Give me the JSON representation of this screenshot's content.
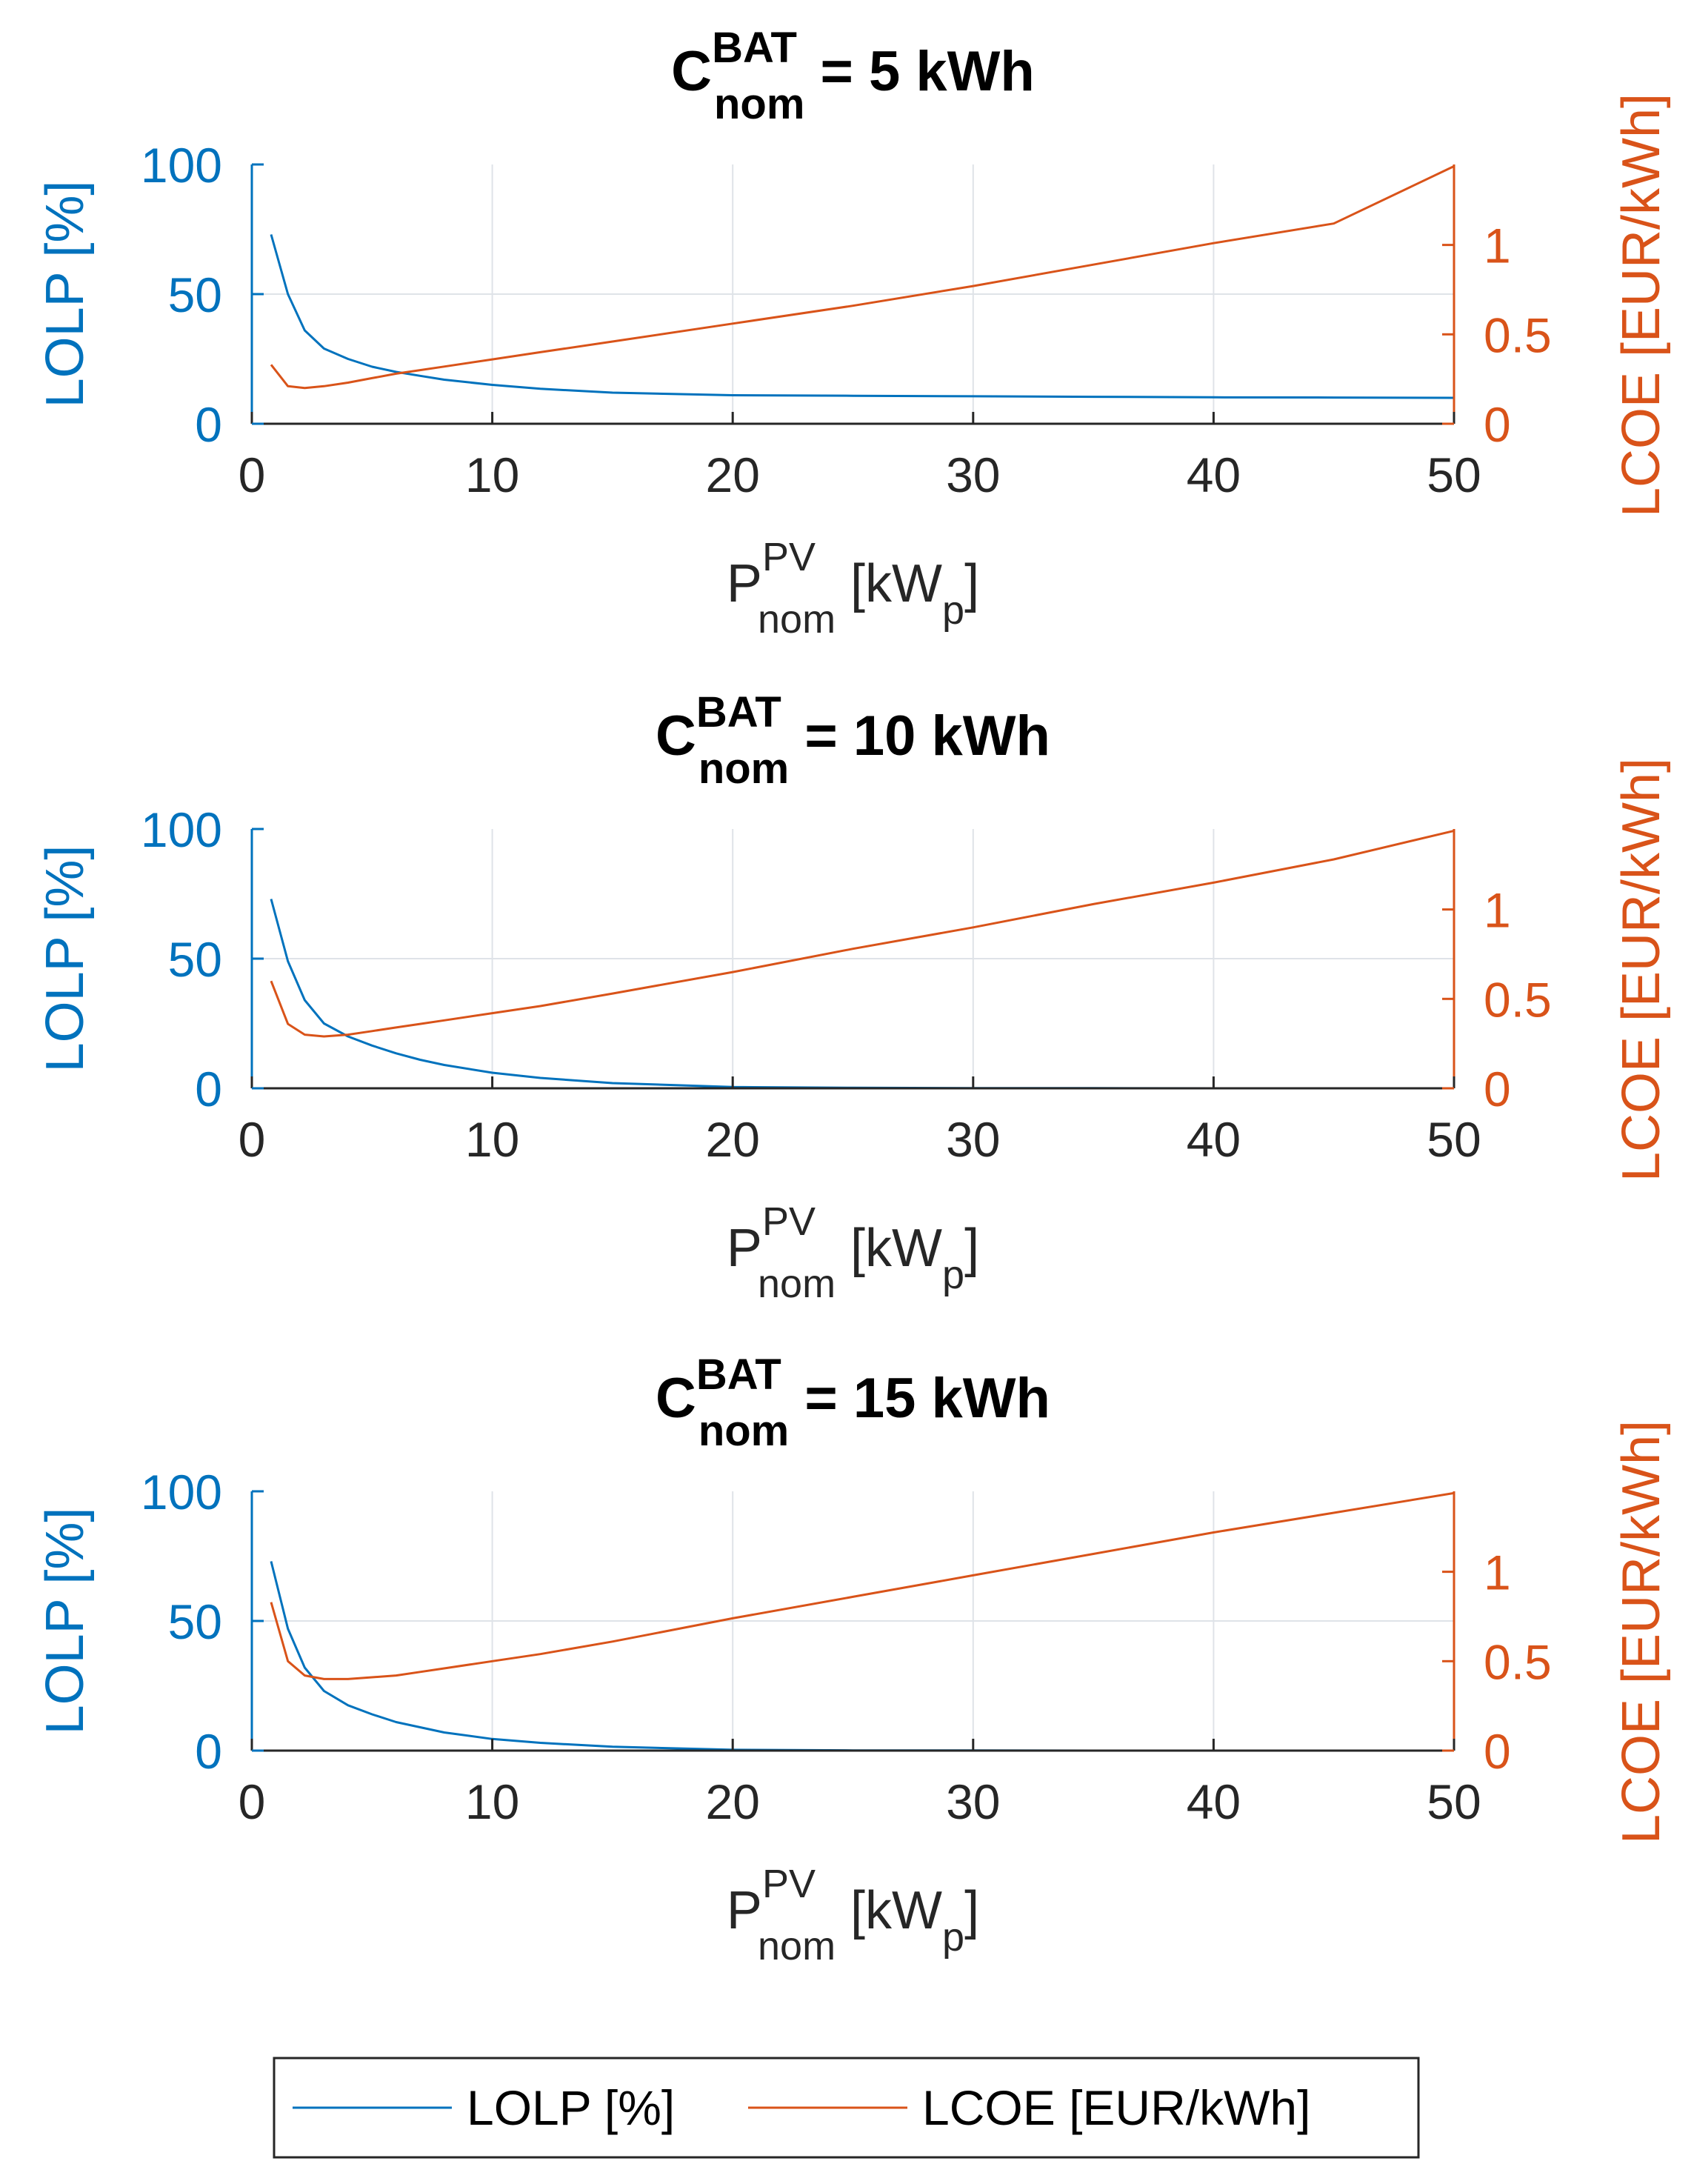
{
  "colors": {
    "lolp": "#0072BD",
    "lcoe": "#D95319",
    "grid": "#dfe3e8",
    "axis": "#262626"
  },
  "legend": [
    {
      "label": "LOLP [%]",
      "color": "#0072BD"
    },
    {
      "label": "LCOE [EUR/kWh]",
      "color": "#D95319"
    }
  ],
  "chart_data": [
    {
      "type": "line",
      "title": {
        "prefix": "C",
        "sup": "BAT",
        "sub": "nom",
        "rest": " = 5 kWh"
      },
      "xlabel": {
        "base": "P",
        "sup": "PV",
        "sub": "nom",
        "after1": " [kW",
        "sub2": "p",
        "after2": "]"
      },
      "ylabel_left": "LOLP [%]",
      "ylabel_right": "LCOE [EUR/kWh]",
      "xlim": [
        0,
        50
      ],
      "xticks": [
        "0",
        "10",
        "20",
        "30",
        "40",
        "50"
      ],
      "ylim_left": [
        0,
        100
      ],
      "yticks_left": [
        "0",
        "50",
        "100"
      ],
      "ylim_right": [
        0,
        1.45
      ],
      "yticks_right": [
        "0",
        "0.5",
        "1"
      ],
      "grid": true,
      "x": [
        0.8,
        1.5,
        2.2,
        3,
        4,
        5,
        6,
        7,
        8,
        10,
        12,
        15,
        20,
        25,
        30,
        35,
        40,
        45,
        50
      ],
      "series": [
        {
          "name": "LOLP [%]",
          "axis": "left",
          "values": [
            73,
            50,
            36,
            29,
            25,
            22,
            20,
            18.5,
            17,
            15,
            13.5,
            12,
            11,
            10.8,
            10.6,
            10.4,
            10.2,
            10.1,
            10
          ]
        },
        {
          "name": "LCOE [EUR/kWh]",
          "axis": "right",
          "values": [
            0.33,
            0.21,
            0.2,
            0.21,
            0.23,
            0.255,
            0.28,
            0.3,
            0.32,
            0.36,
            0.4,
            0.46,
            0.56,
            0.66,
            0.77,
            0.89,
            1.01,
            1.12,
            1.44
          ]
        }
      ]
    },
    {
      "type": "line",
      "title": {
        "prefix": "C",
        "sup": "BAT",
        "sub": "nom",
        "rest": " = 10 kWh"
      },
      "xlabel": {
        "base": "P",
        "sup": "PV",
        "sub": "nom",
        "after1": " [kW",
        "sub2": "p",
        "after2": "]"
      },
      "ylabel_left": "LOLP [%]",
      "ylabel_right": "LCOE [EUR/kWh]",
      "xlim": [
        0,
        50
      ],
      "xticks": [
        "0",
        "10",
        "20",
        "30",
        "40",
        "50"
      ],
      "ylim_left": [
        0,
        100
      ],
      "yticks_left": [
        "0",
        "50",
        "100"
      ],
      "ylim_right": [
        0,
        1.45
      ],
      "yticks_right": [
        "0",
        "0.5",
        "1"
      ],
      "grid": true,
      "x": [
        0.8,
        1.5,
        2.2,
        3,
        4,
        5,
        6,
        7,
        8,
        10,
        12,
        15,
        20,
        25,
        30,
        35,
        40,
        45,
        50
      ],
      "series": [
        {
          "name": "LOLP [%]",
          "axis": "left",
          "values": [
            73,
            49,
            34,
            25,
            20,
            16.5,
            13.5,
            11,
            9,
            6,
            4,
            2,
            0.5,
            0.2,
            0.1,
            0.05,
            0,
            0,
            0
          ]
        },
        {
          "name": "LCOE [EUR/kWh]",
          "axis": "right",
          "values": [
            0.6,
            0.36,
            0.3,
            0.29,
            0.3,
            0.32,
            0.34,
            0.36,
            0.38,
            0.42,
            0.46,
            0.53,
            0.65,
            0.78,
            0.9,
            1.03,
            1.15,
            1.28,
            1.44
          ]
        }
      ]
    },
    {
      "type": "line",
      "title": {
        "prefix": "C",
        "sup": "BAT",
        "sub": "nom",
        "rest": " = 15 kWh"
      },
      "xlabel": {
        "base": "P",
        "sup": "PV",
        "sub": "nom",
        "after1": " [kW",
        "sub2": "p",
        "after2": "]"
      },
      "ylabel_left": "LOLP [%]",
      "ylabel_right": "LCOE [EUR/kWh]",
      "xlim": [
        0,
        50
      ],
      "xticks": [
        "0",
        "10",
        "20",
        "30",
        "40",
        "50"
      ],
      "ylim_left": [
        0,
        100
      ],
      "yticks_left": [
        "0",
        "50",
        "100"
      ],
      "ylim_right": [
        0,
        1.45
      ],
      "yticks_right": [
        "0",
        "0.5",
        "1"
      ],
      "grid": true,
      "x": [
        0.8,
        1.5,
        2.2,
        3,
        4,
        5,
        6,
        7,
        8,
        10,
        12,
        15,
        20,
        25,
        30,
        35,
        40,
        45,
        50
      ],
      "series": [
        {
          "name": "LOLP [%]",
          "axis": "left",
          "values": [
            73,
            47,
            32,
            23,
            17.5,
            14,
            11,
            9,
            7,
            4.5,
            3,
            1.5,
            0.3,
            0.1,
            0.05,
            0,
            0,
            0,
            0
          ]
        },
        {
          "name": "LCOE [EUR/kWh]",
          "axis": "right",
          "values": [
            0.83,
            0.5,
            0.42,
            0.4,
            0.4,
            0.41,
            0.42,
            0.44,
            0.46,
            0.5,
            0.54,
            0.61,
            0.74,
            0.86,
            0.98,
            1.1,
            1.22,
            1.33,
            1.44
          ]
        }
      ]
    }
  ]
}
